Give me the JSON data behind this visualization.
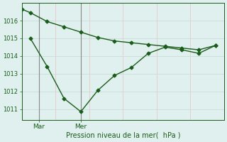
{
  "line1_x": [
    0,
    0.5,
    1.5,
    2.5,
    3.5,
    4.5,
    5.5,
    6.5,
    7.5,
    8.5,
    9.5,
    10.5,
    11.5
  ],
  "line1_y": [
    1016.65,
    1016.45,
    1015.95,
    1015.65,
    1015.35,
    1015.05,
    1014.85,
    1014.75,
    1014.65,
    1014.55,
    1014.45,
    1014.35,
    1014.6
  ],
  "line2_x": [
    0.5,
    1.5,
    2.5,
    3.5,
    4.5,
    5.5,
    6.5,
    7.5,
    8.5,
    9.5,
    10.5,
    11.5
  ],
  "line2_y": [
    1015.0,
    1013.4,
    1011.6,
    1010.85,
    1012.05,
    1012.9,
    1013.35,
    1014.15,
    1014.5,
    1014.35,
    1014.15,
    1014.6
  ],
  "vline_x1": 1.0,
  "vline_x2": 3.5,
  "xtick_positions": [
    1.0,
    3.5
  ],
  "xtick_labels": [
    "Mar",
    "Mer"
  ],
  "ytick_values": [
    1011,
    1012,
    1013,
    1014,
    1015,
    1016
  ],
  "ylim_min": 1010.4,
  "ylim_max": 1017.0,
  "xlim_min": 0,
  "xlim_max": 12,
  "xlabel": "Pression niveau de la mer(  hPa )",
  "line_color": "#1a5c1a",
  "bg_color": "#dff0ee",
  "grid_color_v": "#e8c8c8",
  "grid_color_h": "#c8dcd8",
  "vline_color": "#888888",
  "marker": "D",
  "marker_size": 2.5,
  "linewidth": 1.0
}
